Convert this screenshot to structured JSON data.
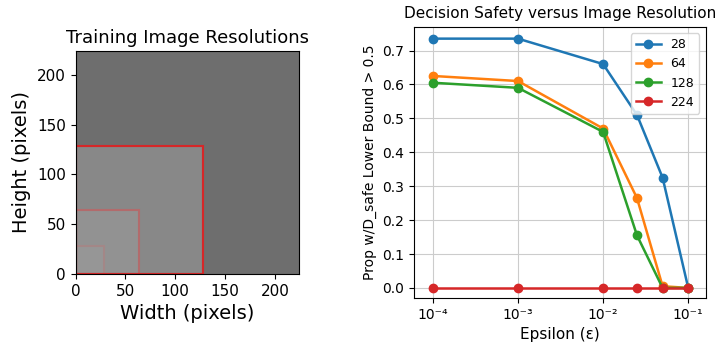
{
  "chart_data": [
    {
      "type": "image",
      "title": "Training Image Resolutions",
      "x_label": "Width (pixels)",
      "y_label": "Height (pixels)",
      "resolutions": [
        28,
        64,
        128
      ],
      "color": "#d62728",
      "xlim": [
        0,
        224
      ],
      "ylim": [
        0,
        224
      ],
      "xticks": [
        0,
        50,
        100,
        150,
        200
      ],
      "yticks": [
        0,
        50,
        100,
        150,
        200
      ]
    },
    {
      "type": "line",
      "title": "Decision Safety versus Image Resolution",
      "x_label": "Epsilon (ε)",
      "y_label": "Prop w/D_safe Lower Bound > 0.5",
      "log": "x",
      "grid": true,
      "legend": "upper right",
      "marker": "o",
      "x": [
        0.0001,
        0.001,
        0.01,
        0.025,
        0.05,
        0.1
      ],
      "series": [
        {
          "name": "28",
          "color": "#1f77b4",
          "values": [
            0.735,
            0.735,
            0.66,
            0.51,
            0.325,
            0.0
          ]
        },
        {
          "name": "64",
          "color": "#ff7f0e",
          "values": [
            0.625,
            0.61,
            0.47,
            0.265,
            0.005,
            0.0
          ]
        },
        {
          "name": "128",
          "color": "#2ca02c",
          "values": [
            0.605,
            0.59,
            0.46,
            0.155,
            0.0,
            0.0
          ]
        },
        {
          "name": "224",
          "color": "#d62728",
          "values": [
            0.0,
            0.0,
            0.0,
            0.0,
            0.0,
            0.0
          ]
        }
      ],
      "xlim": [
        6e-05,
        0.16
      ],
      "xticks": [
        {
          "value": 0.0001,
          "label": "10⁻⁴"
        },
        {
          "value": 0.001,
          "label": "10⁻³"
        },
        {
          "value": 0.01,
          "label": "10⁻²"
        },
        {
          "value": 0.1,
          "label": "10⁻¹"
        }
      ],
      "ylim": [
        -0.03,
        0.77
      ],
      "yticks": [
        0.0,
        0.1,
        0.2,
        0.3,
        0.4,
        0.5,
        0.6,
        0.7
      ]
    }
  ]
}
